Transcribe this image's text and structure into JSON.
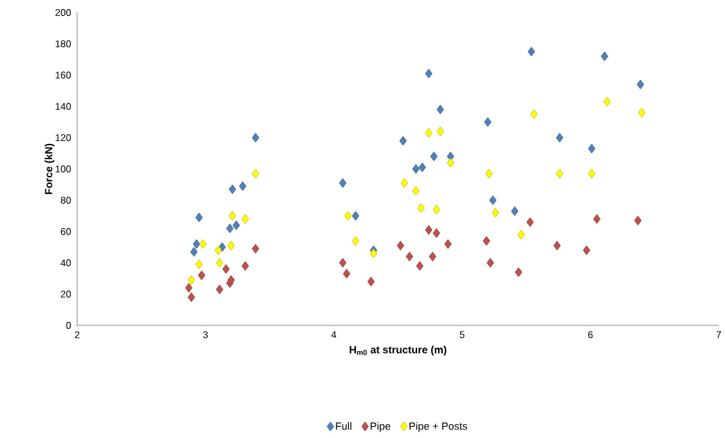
{
  "chart_data": {
    "type": "scatter",
    "xlabel": "H$_{m0}$ at structure (m)",
    "ylabel": "Force (kN)",
    "xlim": [
      2,
      7
    ],
    "xticks": [
      2,
      3,
      4,
      5,
      6,
      7
    ],
    "ylim": [
      0,
      200
    ],
    "yticks": [
      0,
      20,
      40,
      60,
      80,
      100,
      120,
      140,
      160,
      180,
      200
    ],
    "marker": "diamond",
    "legend": "bottom",
    "grid": false,
    "series": [
      {
        "name": "Full",
        "color": "#4f81bd",
        "x": [
          2.95,
          2.93,
          2.91,
          3.13,
          3.19,
          3.24,
          3.21,
          3.29,
          3.39,
          4.07,
          4.17,
          4.31,
          4.54,
          4.74,
          4.64,
          4.69,
          4.78,
          4.83,
          4.91,
          5.2,
          5.24,
          5.41,
          5.54,
          5.76,
          6.01,
          6.11,
          6.39
        ],
        "values": [
          69,
          52,
          47,
          50,
          62,
          64,
          87,
          89,
          120,
          91,
          70,
          48,
          118,
          161,
          100,
          101,
          108,
          138,
          108,
          130,
          80,
          73,
          175,
          120,
          113,
          172,
          154
        ]
      },
      {
        "name": "Pipe",
        "color": "#c0504d",
        "x": [
          2.87,
          2.89,
          2.97,
          3.11,
          3.16,
          3.19,
          3.2,
          3.31,
          3.39,
          4.07,
          4.1,
          4.29,
          4.52,
          4.59,
          4.67,
          4.74,
          4.8,
          4.77,
          4.89,
          5.19,
          5.22,
          5.44,
          5.53,
          5.74,
          5.97,
          6.05,
          6.37
        ],
        "values": [
          24,
          18,
          32,
          23,
          36,
          27,
          29,
          38,
          49,
          40,
          33,
          28,
          51,
          44,
          38,
          61,
          59,
          44,
          52,
          54,
          40,
          34,
          66,
          51,
          48,
          68,
          67
        ]
      },
      {
        "name": "Pipe + Posts",
        "color": "#ffff00",
        "x": [
          2.89,
          2.95,
          2.98,
          3.11,
          3.1,
          3.2,
          3.21,
          3.31,
          3.39,
          4.11,
          4.17,
          4.31,
          4.55,
          4.64,
          4.68,
          4.74,
          4.83,
          4.8,
          4.91,
          5.21,
          5.26,
          5.46,
          5.56,
          5.76,
          6.01,
          6.13,
          6.4
        ],
        "values": [
          29,
          39,
          52,
          40,
          48,
          51,
          70,
          68,
          97,
          70,
          54,
          46,
          91,
          86,
          75,
          123,
          124,
          74,
          104,
          97,
          72,
          58,
          135,
          97,
          97,
          143,
          136
        ]
      }
    ]
  }
}
